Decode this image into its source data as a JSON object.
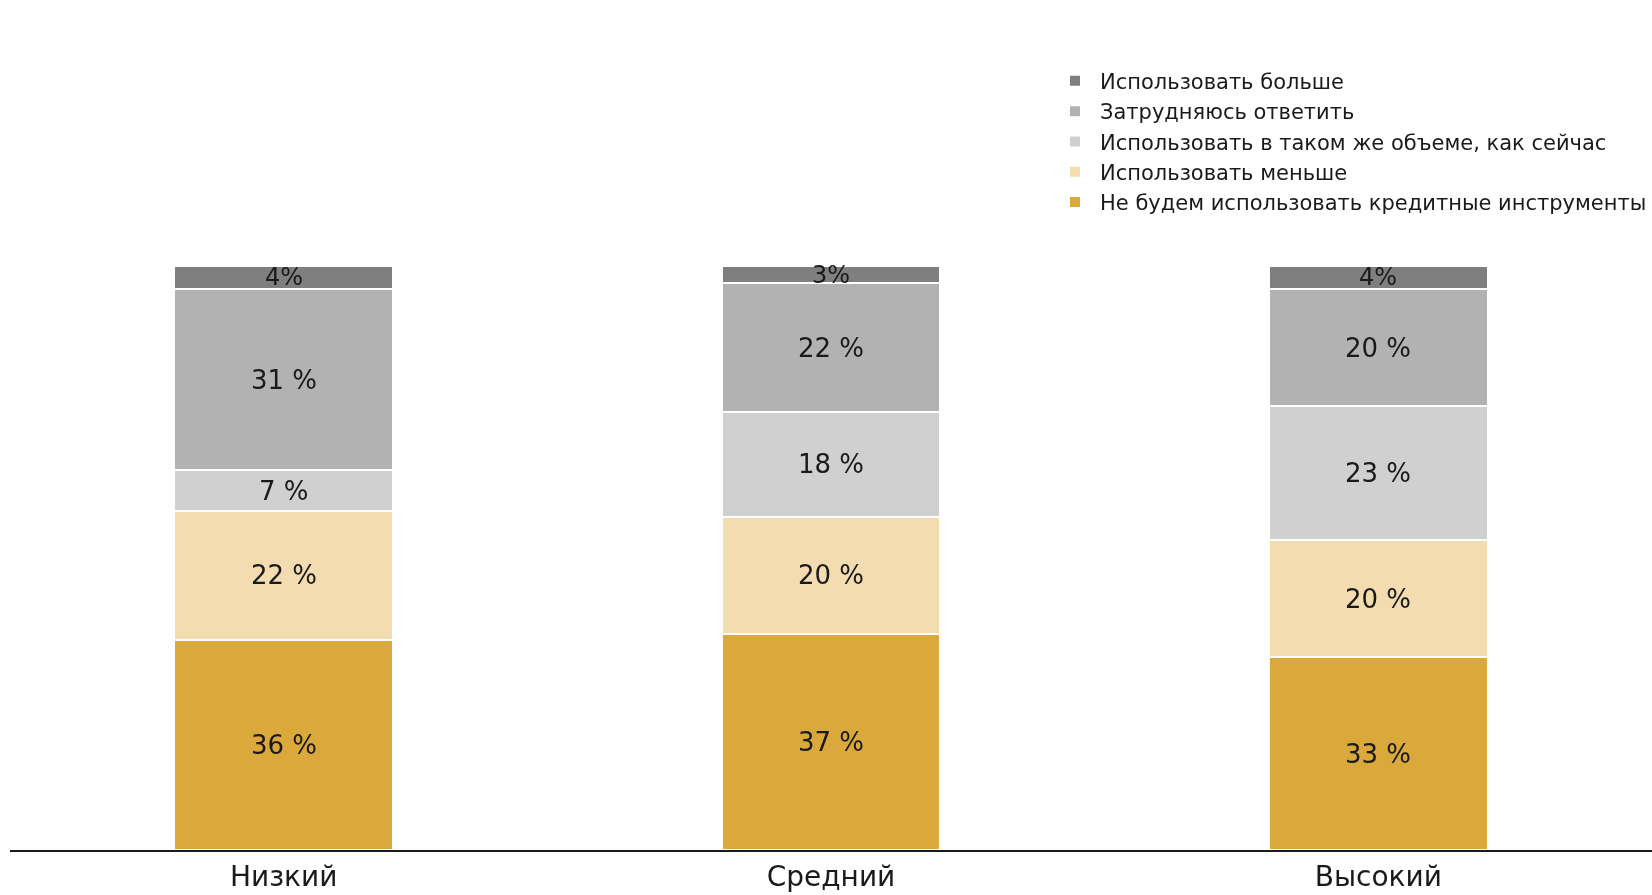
{
  "chart_data": {
    "type": "bar",
    "stacked": true,
    "categories": [
      "Низкий",
      "Средний",
      "Высокий"
    ],
    "legend": "top right",
    "grid": false,
    "series": [
      {
        "name": "Не будем использовать кредитные инструменты",
        "color": "#dba83b",
        "values": [
          36,
          37,
          33
        ],
        "value_labels": [
          "36 %",
          "37 %",
          "33 %"
        ]
      },
      {
        "name": "Использовать меньше",
        "color": "#f2dcb0",
        "values": [
          22,
          20,
          20
        ],
        "value_labels": [
          "22 %",
          "20 %",
          "20 %"
        ]
      },
      {
        "name": "Использовать в таком же объеме, как сейчас",
        "color": "#d0d0d0",
        "values": [
          7,
          18,
          23
        ],
        "value_labels": [
          "7 %",
          "18 %",
          "23 %"
        ]
      },
      {
        "name": "Затрудняюсь ответить",
        "color": "#b2b2b2",
        "values": [
          31,
          22,
          20
        ],
        "value_labels": [
          "31 %",
          "22 %",
          "20 %"
        ]
      },
      {
        "name": "Использовать больше",
        "color": "#7f7f7f",
        "values": [
          4,
          3,
          4
        ],
        "value_labels": [
          "4%",
          "3%",
          "4%"
        ]
      }
    ]
  }
}
